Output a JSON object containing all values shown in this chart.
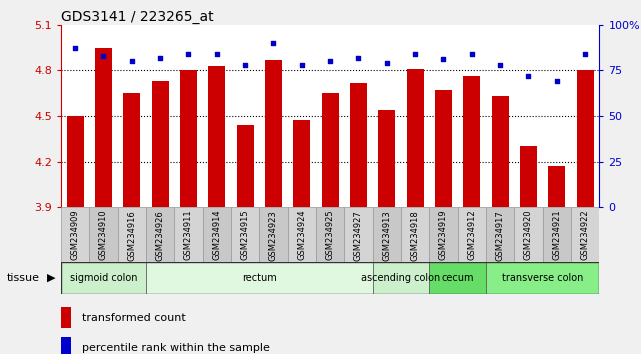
{
  "title": "GDS3141 / 223265_at",
  "samples": [
    "GSM234909",
    "GSM234910",
    "GSM234916",
    "GSM234926",
    "GSM234911",
    "GSM234914",
    "GSM234915",
    "GSM234923",
    "GSM234924",
    "GSM234925",
    "GSM234927",
    "GSM234913",
    "GSM234918",
    "GSM234919",
    "GSM234912",
    "GSM234917",
    "GSM234920",
    "GSM234921",
    "GSM234922"
  ],
  "bar_values": [
    4.5,
    4.95,
    4.65,
    4.73,
    4.8,
    4.83,
    4.44,
    4.87,
    4.47,
    4.65,
    4.72,
    4.54,
    4.81,
    4.67,
    4.76,
    4.63,
    4.3,
    4.17,
    4.8
  ],
  "dot_values": [
    87,
    83,
    80,
    82,
    84,
    84,
    78,
    90,
    78,
    80,
    82,
    79,
    84,
    81,
    84,
    78,
    72,
    69,
    84
  ],
  "bar_color": "#cc0000",
  "dot_color": "#0000cc",
  "ylim_left": [
    3.9,
    5.1
  ],
  "ylim_right": [
    0,
    100
  ],
  "yticks_left": [
    3.9,
    4.2,
    4.5,
    4.8,
    5.1
  ],
  "yticks_right": [
    0,
    25,
    50,
    75,
    100
  ],
  "ytick_labels_left": [
    "3.9",
    "4.2",
    "4.5",
    "4.8",
    "5.1"
  ],
  "ytick_labels_right": [
    "0",
    "25",
    "50",
    "75",
    "100%"
  ],
  "hlines": [
    4.2,
    4.5,
    4.8
  ],
  "tissue_groups": [
    {
      "label": "sigmoid colon",
      "start": 0,
      "end": 3,
      "color": "#ccf0cc"
    },
    {
      "label": "rectum",
      "start": 3,
      "end": 11,
      "color": "#e0f8e0"
    },
    {
      "label": "ascending colon",
      "start": 11,
      "end": 13,
      "color": "#ccf0cc"
    },
    {
      "label": "cecum",
      "start": 13,
      "end": 15,
      "color": "#66dd66"
    },
    {
      "label": "transverse colon",
      "start": 15,
      "end": 19,
      "color": "#88ee88"
    }
  ],
  "tissue_label": "tissue",
  "legend_bar": "transformed count",
  "legend_dot": "percentile rank within the sample",
  "bar_width": 0.6,
  "background_color": "#f0f0f0",
  "plot_bg": "#ffffff",
  "sample_box_color": "#d4d4d4",
  "sample_box_edge": "#999999"
}
